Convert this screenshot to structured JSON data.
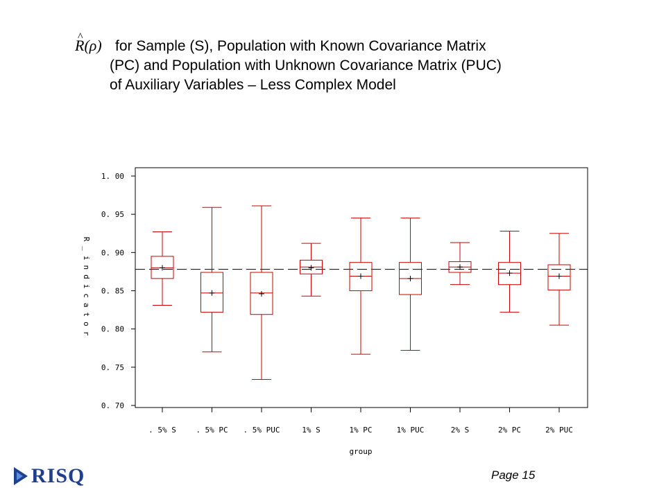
{
  "title": {
    "symbol": "R(ρ)",
    "line1": "for Sample (S), Population with Known Covariance Matrix",
    "line2": "(PC) and Population with Unknown Covariance Matrix (PUC)",
    "line3": "of Auxiliary Variables – Less Complex Model"
  },
  "chart_data": {
    "type": "boxplot",
    "xlabel": "group",
    "ylabel": "R_indicator",
    "ylim": [
      0.7,
      1.0
    ],
    "yticks": [
      "1. 00",
      "0. 95",
      "0. 90",
      "0. 85",
      "0. 80",
      "0. 75",
      "0. 70"
    ],
    "ytick_values": [
      1.0,
      0.95,
      0.9,
      0.85,
      0.8,
      0.75,
      0.7
    ],
    "reference_line": 0.878,
    "box_color": "#cc0000",
    "categories": [
      ". 5% S",
      ". 5% PC",
      ". 5% PUC",
      "1% S",
      "1% PC",
      "1% PUC",
      "2% S",
      "2% PC",
      "2% PUC"
    ],
    "boxes": [
      {
        "min": 0.831,
        "q1": 0.866,
        "median": 0.88,
        "q3": 0.895,
        "max": 0.927,
        "mean": 0.88
      },
      {
        "min": 0.77,
        "q1": 0.822,
        "median": 0.847,
        "q3": 0.874,
        "max": 0.959,
        "mean": 0.847
      },
      {
        "min": 0.734,
        "q1": 0.819,
        "median": 0.847,
        "q3": 0.874,
        "max": 0.961,
        "mean": 0.846
      },
      {
        "min": 0.843,
        "q1": 0.872,
        "median": 0.881,
        "q3": 0.89,
        "max": 0.912,
        "mean": 0.88
      },
      {
        "min": 0.767,
        "q1": 0.85,
        "median": 0.869,
        "q3": 0.887,
        "max": 0.945,
        "mean": 0.869
      },
      {
        "min": 0.772,
        "q1": 0.845,
        "median": 0.866,
        "q3": 0.887,
        "max": 0.945,
        "mean": 0.866
      },
      {
        "min": 0.858,
        "q1": 0.874,
        "median": 0.881,
        "q3": 0.888,
        "max": 0.913,
        "mean": 0.881
      },
      {
        "min": 0.822,
        "q1": 0.858,
        "median": 0.873,
        "q3": 0.887,
        "max": 0.928,
        "mean": 0.873
      },
      {
        "min": 0.805,
        "q1": 0.851,
        "median": 0.869,
        "q3": 0.884,
        "max": 0.925,
        "mean": 0.869
      }
    ]
  },
  "footer": {
    "logo_text": "RISQ",
    "page_label": "Page 15"
  }
}
